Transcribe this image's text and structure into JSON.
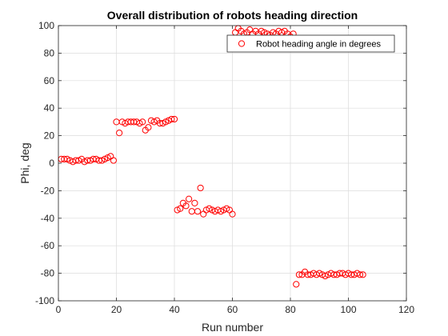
{
  "chart_data": {
    "type": "scatter",
    "title": "Overall distribution of robots heading direction",
    "xlabel": "Run number",
    "ylabel": "Phi, deg",
    "xlim": [
      0,
      120
    ],
    "ylim": [
      -100,
      100
    ],
    "xticks": [
      0,
      20,
      40,
      60,
      80,
      100,
      120
    ],
    "yticks": [
      -100,
      -80,
      -60,
      -40,
      -20,
      0,
      20,
      40,
      60,
      80,
      100
    ],
    "grid": true,
    "legend_position": "top-right",
    "marker": "open-circle",
    "color": "#ff0000",
    "series": [
      {
        "name": "Robot heading angle in degrees",
        "x": [
          1,
          2,
          3,
          4,
          5,
          6,
          7,
          8,
          9,
          10,
          11,
          12,
          13,
          14,
          15,
          16,
          17,
          18,
          19,
          20,
          21,
          22,
          23,
          24,
          25,
          26,
          27,
          28,
          29,
          30,
          31,
          32,
          33,
          34,
          35,
          36,
          37,
          38,
          39,
          40,
          41,
          42,
          43,
          44,
          45,
          46,
          47,
          48,
          49,
          50,
          51,
          52,
          53,
          54,
          55,
          56,
          57,
          58,
          59,
          60,
          61,
          62,
          63,
          64,
          65,
          66,
          67,
          68,
          69,
          70,
          71,
          72,
          73,
          74,
          75,
          76,
          77,
          78,
          79,
          80,
          81,
          82,
          83,
          84,
          85,
          86,
          87,
          88,
          89,
          90,
          91,
          92,
          93,
          94,
          95,
          96,
          97,
          98,
          99,
          100,
          101,
          102,
          103,
          104,
          105
        ],
        "y": [
          3,
          3,
          3,
          2,
          1,
          2,
          2,
          3,
          1,
          2,
          2,
          3,
          3,
          2,
          2,
          3,
          4,
          5,
          2,
          30,
          22,
          30,
          29,
          30,
          30,
          30,
          30,
          29,
          30,
          24,
          26,
          31,
          30,
          31,
          29,
          29,
          30,
          31,
          32,
          32,
          -34,
          -33,
          -29,
          -31,
          -26,
          -35,
          -29,
          -35,
          -18,
          -37,
          -34,
          -33,
          -34,
          -35,
          -34,
          -35,
          -34,
          -33,
          -34,
          -37,
          95,
          98,
          96,
          94,
          95,
          97,
          94,
          96,
          94,
          96,
          95,
          94,
          93,
          95,
          94,
          96,
          95,
          96,
          94,
          92,
          94,
          -88,
          -81,
          -81,
          -79,
          -81,
          -81,
          -80,
          -81,
          -80,
          -81,
          -82,
          -81,
          -80,
          -81,
          -81,
          -80,
          -80,
          -81,
          -80,
          -81,
          -81,
          -80,
          -81,
          -81
        ]
      }
    ]
  }
}
